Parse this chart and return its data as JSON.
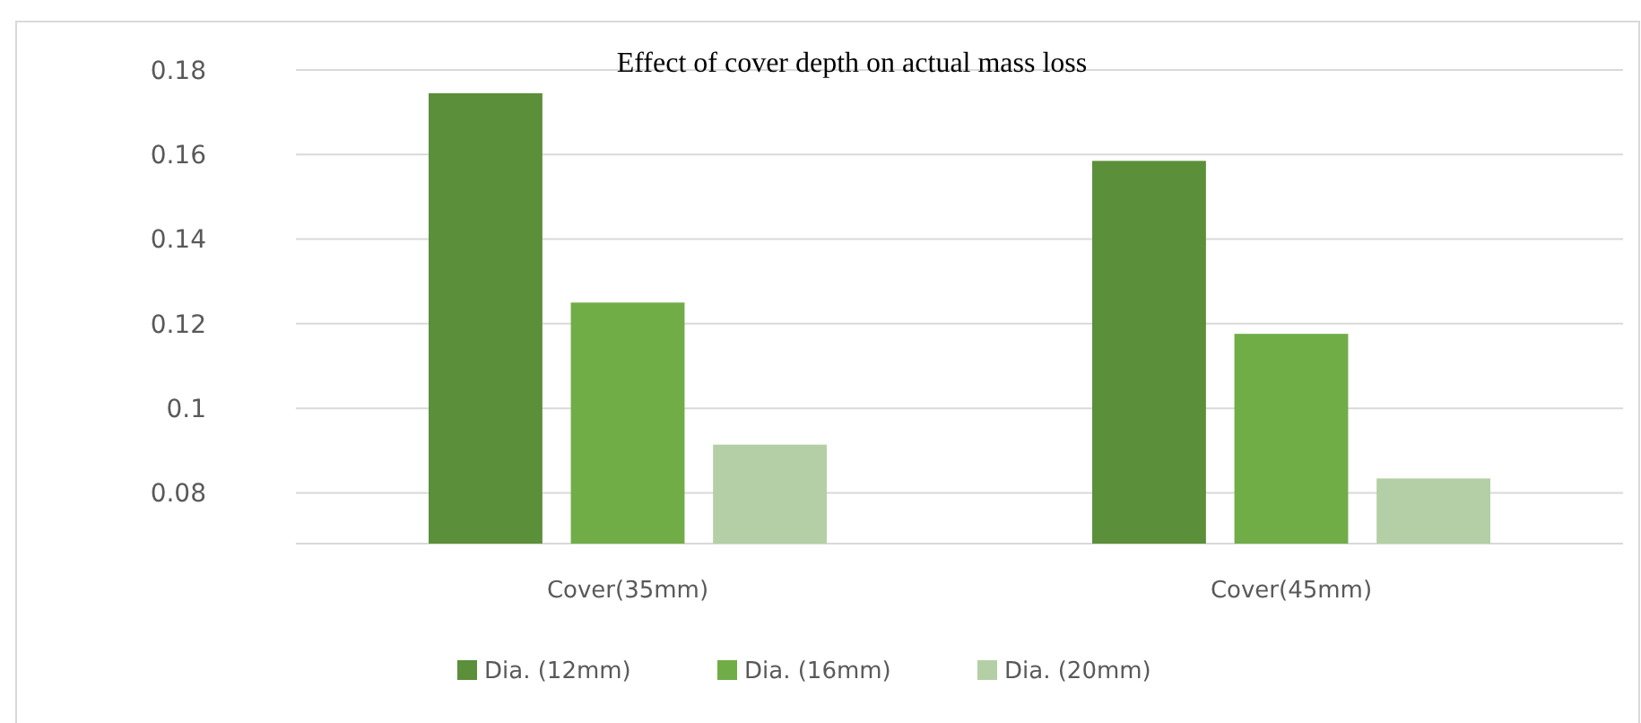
{
  "chart_data": {
    "type": "bar",
    "title": "Effect of cover depth on actual mass loss",
    "categories": [
      "Cover(35mm)",
      "Cover(45mm)"
    ],
    "series": [
      {
        "name": "Dia. (12mm)",
        "color": "#5b8f3a",
        "values": [
          0.1745,
          0.1585
        ]
      },
      {
        "name": "Dia. (16mm)",
        "color": "#70ad47",
        "values": [
          0.125,
          0.1176
        ]
      },
      {
        "name": "Dia. (20mm)",
        "color": "#b4cfa6",
        "values": [
          0.0914,
          0.0834
        ]
      }
    ],
    "ylim": [
      0.068,
      0.18
    ],
    "yticks": [
      0.08,
      0.1,
      0.12,
      0.14,
      0.16,
      0.18
    ],
    "grid": true,
    "legend": "bottom"
  }
}
